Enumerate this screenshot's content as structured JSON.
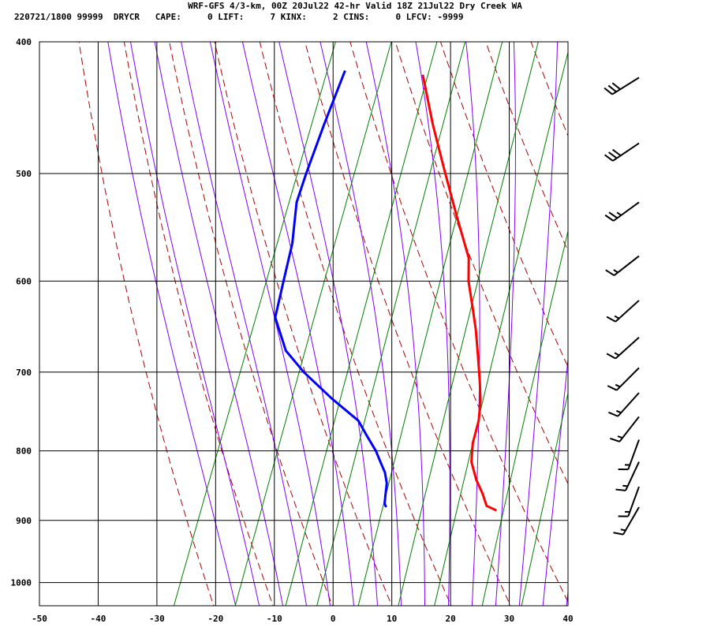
{
  "header": {
    "title": "WRF-GFS 4/3-km, 00Z 20Jul22 42-hr Valid 18Z 21Jul22 Dry Creek WA",
    "stats": "220721/1800 99999  DRYCR   CAPE:     0 LIFT:     7 KINX:     2 CINS:     0 LFCV: -9999"
  },
  "colors": {
    "temperature": "#ff0000",
    "dewpoint": "#0000ff",
    "dry_adiabat": "#aa0000",
    "moist_adiabat": "#7f00ff",
    "mixing_ratio": "#007f00",
    "grid": "#000000"
  },
  "chart_data": {
    "type": "line",
    "diagram": "skew-t",
    "xlim": [
      -50,
      40
    ],
    "x_ticks": [
      -50,
      -40,
      -30,
      -20,
      -10,
      0,
      10,
      20,
      30,
      40
    ],
    "ylim": [
      1040,
      400
    ],
    "y_ticks": [
      400,
      500,
      600,
      700,
      800,
      900,
      1000
    ],
    "grid": true,
    "series": [
      {
        "role": "temperature",
        "points": [
          [
            -20.0,
            423
          ],
          [
            -15.0,
            460
          ],
          [
            -10.0,
            497
          ],
          [
            -5.0,
            536
          ],
          [
            0.0,
            577
          ],
          [
            1.5,
            600
          ],
          [
            4.0,
            628
          ],
          [
            6.0,
            652
          ],
          [
            8.0,
            680
          ],
          [
            10.0,
            710
          ],
          [
            11.5,
            735
          ],
          [
            12.5,
            760
          ],
          [
            13.0,
            790
          ],
          [
            14.0,
            815
          ],
          [
            16.0,
            840
          ],
          [
            18.0,
            860
          ],
          [
            19.5,
            878
          ],
          [
            21.5,
            885
          ]
        ]
      },
      {
        "role": "dewpoint",
        "points": [
          [
            -33.5,
            420
          ],
          [
            -33.5,
            460
          ],
          [
            -33.3,
            500
          ],
          [
            -33.0,
            525
          ],
          [
            -31.0,
            563
          ],
          [
            -30.0,
            600
          ],
          [
            -29.0,
            638
          ],
          [
            -25.0,
            675
          ],
          [
            -20.5,
            700
          ],
          [
            -14.0,
            732
          ],
          [
            -8.0,
            760
          ],
          [
            -5.5,
            780
          ],
          [
            -3.0,
            800
          ],
          [
            -1.5,
            815
          ],
          [
            0.0,
            830
          ],
          [
            1.0,
            845
          ],
          [
            1.5,
            860
          ],
          [
            2.0,
            875
          ],
          [
            2.5,
            880
          ]
        ]
      }
    ],
    "wind_barbs": [
      {
        "p": 425,
        "dir": 238,
        "spd": 30
      },
      {
        "p": 475,
        "dir": 236,
        "spd": 30
      },
      {
        "p": 525,
        "dir": 234,
        "spd": 25
      },
      {
        "p": 575,
        "dir": 232,
        "spd": 15
      },
      {
        "p": 620,
        "dir": 228,
        "spd": 15
      },
      {
        "p": 660,
        "dir": 228,
        "spd": 15
      },
      {
        "p": 695,
        "dir": 225,
        "spd": 15
      },
      {
        "p": 725,
        "dir": 222,
        "spd": 15
      },
      {
        "p": 755,
        "dir": 218,
        "spd": 15
      },
      {
        "p": 785,
        "dir": 200,
        "spd": 15
      },
      {
        "p": 815,
        "dir": 205,
        "spd": 15
      },
      {
        "p": 850,
        "dir": 200,
        "spd": 15
      },
      {
        "p": 880,
        "dir": 210,
        "spd": 15
      }
    ]
  }
}
